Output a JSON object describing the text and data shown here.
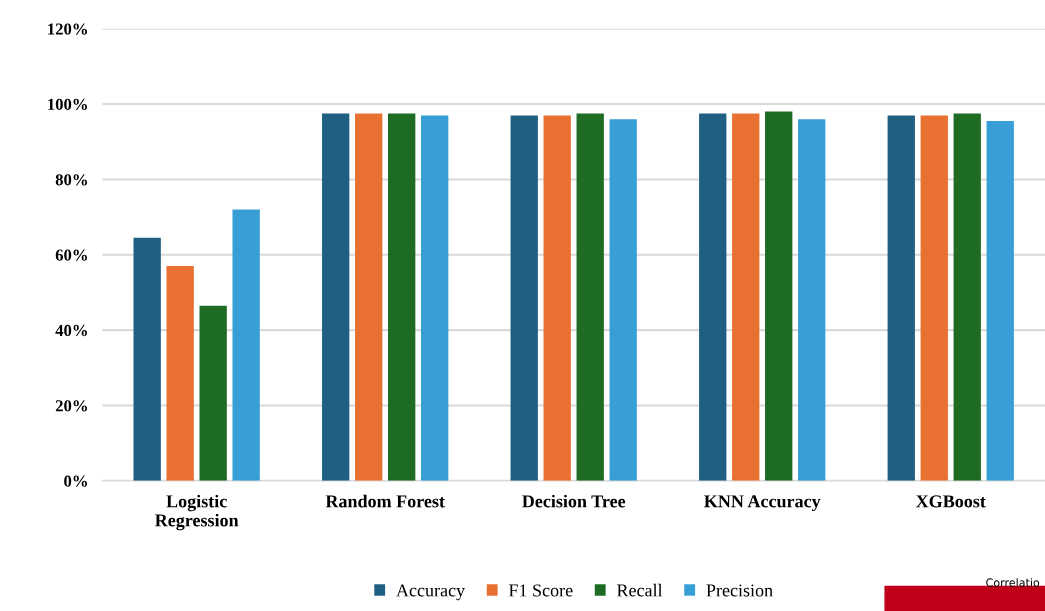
{
  "chart_data": {
    "type": "bar",
    "categories": [
      "Logistic\nRegression",
      "Random Forest",
      "Decision Tree",
      "KNN Accuracy",
      "XGBoost"
    ],
    "series": [
      {
        "name": "Accuracy",
        "color": "#1f5f82",
        "values": [
          64.5,
          97.5,
          97,
          97.5,
          97
        ]
      },
      {
        "name": "F1 Score",
        "color": "#e87132",
        "values": [
          57,
          97.5,
          97,
          97.5,
          97
        ]
      },
      {
        "name": "Recall",
        "color": "#1e6b24",
        "values": [
          46.5,
          97.5,
          97.5,
          98,
          97.5
        ]
      },
      {
        "name": "Precision",
        "color": "#379fd6",
        "values": [
          72,
          97,
          96,
          96,
          95.5
        ]
      }
    ],
    "ylim": [
      0,
      120
    ],
    "yticks": [
      {
        "value": 0,
        "label": "0%"
      },
      {
        "value": 20,
        "label": "20%"
      },
      {
        "value": 40,
        "label": "40%"
      },
      {
        "value": 60,
        "label": "60%"
      },
      {
        "value": 80,
        "label": "80%"
      },
      {
        "value": 100,
        "label": "100%"
      },
      {
        "value": 120,
        "label": "120%"
      }
    ],
    "grid": "y",
    "legend": "bottom",
    "annotations": [
      "Correlatio"
    ]
  }
}
